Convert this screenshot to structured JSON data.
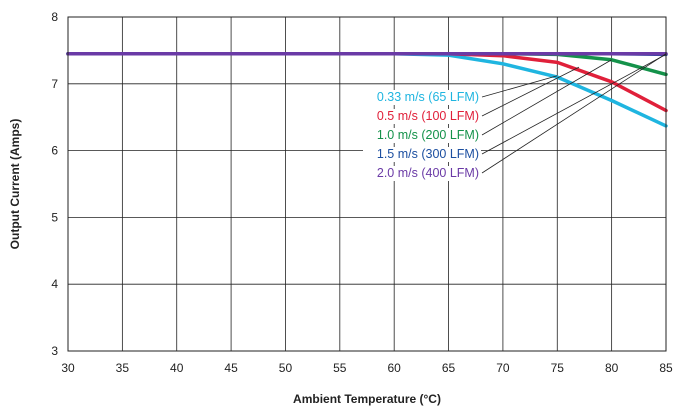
{
  "chart_data": {
    "type": "line",
    "xlabel": "Ambient Temperature (°C)",
    "ylabel": "Output Current (Amps)",
    "xlim": [
      30,
      85
    ],
    "ylim": [
      3,
      8
    ],
    "x_ticks": [
      30,
      35,
      40,
      45,
      50,
      55,
      60,
      65,
      70,
      75,
      80,
      85
    ],
    "y_ticks": [
      3,
      4,
      5,
      6,
      7,
      8
    ],
    "grid": true,
    "series": [
      {
        "name": "0.33 m/s (65 LFM)",
        "color": "#1fb5e0",
        "points": [
          [
            30,
            7.45
          ],
          [
            60,
            7.45
          ],
          [
            65,
            7.43
          ],
          [
            70,
            7.3
          ],
          [
            75,
            7.1
          ],
          [
            80,
            6.75
          ],
          [
            85,
            6.37
          ]
        ]
      },
      {
        "name": "0.5 m/s (100 LFM)",
        "color": "#e0203a",
        "points": [
          [
            30,
            7.45
          ],
          [
            65,
            7.45
          ],
          [
            70,
            7.42
          ],
          [
            75,
            7.32
          ],
          [
            80,
            7.03
          ],
          [
            85,
            6.6
          ]
        ]
      },
      {
        "name": "1.0 m/s (200 LFM)",
        "color": "#14924a",
        "points": [
          [
            30,
            7.45
          ],
          [
            70,
            7.45
          ],
          [
            75,
            7.44
          ],
          [
            80,
            7.36
          ],
          [
            85,
            7.14
          ]
        ]
      },
      {
        "name": "1.5 m/s (300 LFM)",
        "color": "#1c4fa0",
        "points": [
          [
            30,
            7.45
          ],
          [
            80,
            7.45
          ],
          [
            85,
            7.44
          ]
        ]
      },
      {
        "name": "2.0 m/s (400 LFM)",
        "color": "#6a3aa6",
        "points": [
          [
            30,
            7.45
          ],
          [
            85,
            7.45
          ]
        ]
      }
    ],
    "callouts": [
      {
        "series": 0,
        "target_x": 75,
        "target_y": 7.12
      },
      {
        "series": 1,
        "target_x": 77,
        "target_y": 7.25
      },
      {
        "series": 2,
        "target_x": 80,
        "target_y": 7.36
      },
      {
        "series": 3,
        "target_x": 85,
        "target_y": 7.44
      },
      {
        "series": 4,
        "target_x": 85,
        "target_y": 7.45
      }
    ]
  }
}
